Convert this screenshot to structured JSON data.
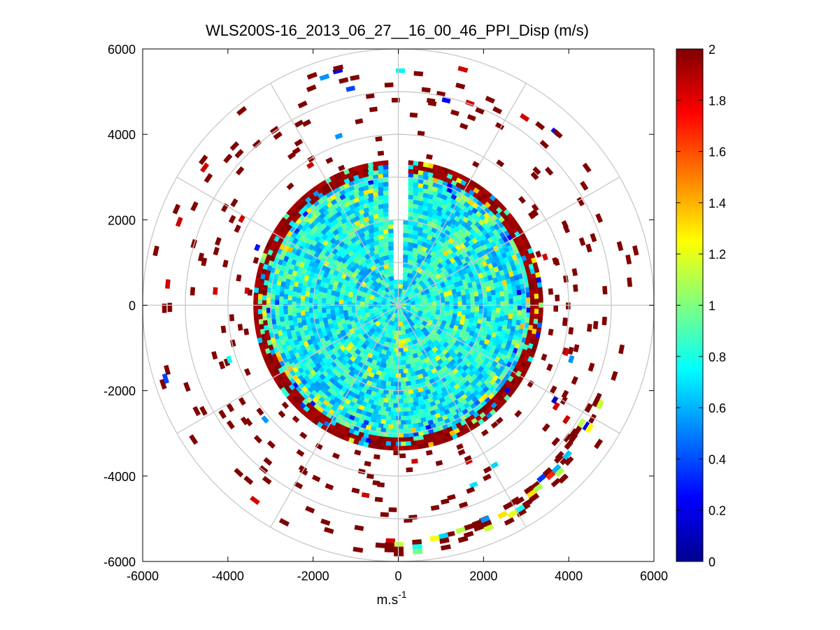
{
  "chart_data": {
    "type": "heatmap",
    "subtype": "polar-ppi-scan",
    "title": "WLS200S-16_2013_06_27__16_00_46_PPI_Disp (m/s)",
    "xlabel_base": "m.s",
    "xlabel_exponent": "-1",
    "ylabel": "",
    "xlim": [
      -6000,
      6000
    ],
    "ylim": [
      -6000,
      6000
    ],
    "x_ticks": [
      -6000,
      -4000,
      -2000,
      0,
      2000,
      4000,
      6000
    ],
    "x_tick_labels": [
      "-6000",
      "-4000",
      "-2000",
      "0",
      "2000",
      "4000",
      "6000"
    ],
    "y_ticks": [
      6000,
      4000,
      2000,
      0,
      -2000,
      -4000,
      -6000
    ],
    "y_tick_labels": [
      "6000",
      "4000",
      "2000",
      "0",
      "-2000",
      "-4000",
      "-6000"
    ],
    "polar_grid": {
      "range_rings_m": [
        1000,
        2000,
        3000,
        4000,
        5000,
        6000
      ],
      "radial_lines_deg": [
        0,
        30,
        60,
        90,
        120,
        150,
        180,
        210,
        240,
        270,
        300,
        330
      ]
    },
    "colorbar": {
      "colormap": "jet",
      "min": 0,
      "max": 2,
      "ticks": [
        2,
        1.8,
        1.6,
        1.4,
        1.2,
        1,
        0.8,
        0.6,
        0.4,
        0.2,
        0
      ],
      "tick_labels": [
        "2",
        "1.8",
        "1.6",
        "1.4",
        "1.2",
        "1",
        "0.8",
        "0.6",
        "0.4",
        "0.2",
        "0"
      ]
    },
    "data_description": {
      "dense_region_max_range_m": 3400,
      "dense_region_typical_value": 0.75,
      "edge_ring_range_m": [
        3000,
        3400
      ],
      "edge_ring_typical_value": 2.0,
      "missing_sector_deg": [
        355,
        5
      ],
      "sparse_outer_range_m": [
        3400,
        5800
      ],
      "outer_arc_sector_deg": [
        115,
        185
      ],
      "outer_arc_range_m": [
        5000,
        5800
      ]
    }
  }
}
